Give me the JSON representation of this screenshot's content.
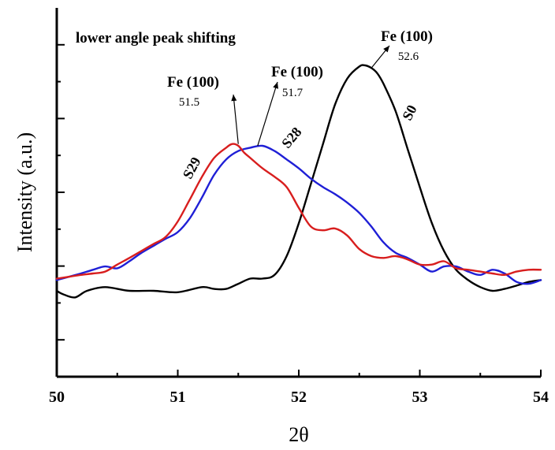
{
  "chart_data": {
    "type": "line",
    "xlabel": "2θ",
    "ylabel": "Intensity (a.u.)",
    "xlim": [
      50,
      54
    ],
    "ylim": [
      0,
      100
    ],
    "x_ticks": [
      "50",
      "51",
      "52",
      "53",
      "54"
    ],
    "y_ticks_labeled": false,
    "grid": false,
    "annotations": {
      "note": "lower angle peak shifting",
      "peaks": [
        {
          "label": "Fe (100)",
          "value": "51.5",
          "x": 51.5,
          "y": 63.1
        },
        {
          "label": "Fe (100)",
          "value": "51.7",
          "x": 51.66,
          "y": 62.6
        },
        {
          "label": "Fe (100)",
          "value": "52.6",
          "x": 52.6,
          "y": 83.7
        }
      ]
    },
    "series": [
      {
        "name": "S0",
        "color": "#000000",
        "x": [
          50,
          50.05,
          50.15,
          50.25,
          50.4,
          50.6,
          50.8,
          51.0,
          51.2,
          51.3,
          51.4,
          51.5,
          51.6,
          51.7,
          51.8,
          51.9,
          52.0,
          52.1,
          52.2,
          52.3,
          52.4,
          52.5,
          52.55,
          52.6,
          52.65,
          52.7,
          52.8,
          52.9,
          53.0,
          53.1,
          53.2,
          53.3,
          53.4,
          53.5,
          53.6,
          53.7,
          53.8,
          53.9,
          54.0
        ],
        "y": [
          23.3,
          22.4,
          21.5,
          23.3,
          24.3,
          23.3,
          23.3,
          22.9,
          24.3,
          23.8,
          23.8,
          25.2,
          26.6,
          26.6,
          27.6,
          32.7,
          41.6,
          52.3,
          63.1,
          73.8,
          80.8,
          84.1,
          84.4,
          83.7,
          82.2,
          79.4,
          72.0,
          61.7,
          51.4,
          41.6,
          34.1,
          29.0,
          26.2,
          24.3,
          23.3,
          23.8,
          24.7,
          25.7,
          26.2
        ]
      },
      {
        "name": "S28",
        "color": "#1f1fd6",
        "x": [
          50,
          50.1,
          50.2,
          50.3,
          50.4,
          50.5,
          50.6,
          50.7,
          50.8,
          50.9,
          51.0,
          51.1,
          51.2,
          51.3,
          51.4,
          51.5,
          51.6,
          51.7,
          51.8,
          51.9,
          52.0,
          52.1,
          52.2,
          52.3,
          52.4,
          52.5,
          52.6,
          52.7,
          52.8,
          52.9,
          53.0,
          53.1,
          53.2,
          53.3,
          53.4,
          53.5,
          53.6,
          53.7,
          53.8,
          53.9,
          54.0
        ],
        "y": [
          26.2,
          27.1,
          28.0,
          29.0,
          29.9,
          29.4,
          31.3,
          33.6,
          35.5,
          37.4,
          39.2,
          43.0,
          48.6,
          54.7,
          58.9,
          61.2,
          62.1,
          62.6,
          61.2,
          58.9,
          56.5,
          53.7,
          51.4,
          49.5,
          47.2,
          44.4,
          40.7,
          36.4,
          33.6,
          32.2,
          30.4,
          28.5,
          29.9,
          29.9,
          28.5,
          27.6,
          29.0,
          28.0,
          25.7,
          25.2,
          26.2
        ]
      },
      {
        "name": "S29",
        "color": "#d81e1e",
        "x": [
          50,
          50.1,
          50.2,
          50.3,
          50.4,
          50.5,
          50.6,
          50.7,
          50.8,
          50.9,
          51.0,
          51.1,
          51.2,
          51.3,
          51.4,
          51.45,
          51.5,
          51.55,
          51.6,
          51.7,
          51.8,
          51.9,
          52.0,
          52.1,
          52.2,
          52.3,
          52.4,
          52.5,
          52.6,
          52.7,
          52.8,
          52.9,
          53.0,
          53.1,
          53.2,
          53.3,
          53.4,
          53.5,
          53.6,
          53.7,
          53.8,
          53.9,
          54.0
        ],
        "y": [
          26.6,
          27.1,
          27.6,
          28.0,
          28.5,
          30.4,
          32.2,
          34.1,
          36.0,
          37.9,
          42.1,
          48.1,
          54.2,
          59.3,
          62.1,
          63.1,
          62.6,
          60.7,
          59.3,
          56.5,
          54.2,
          51.4,
          45.8,
          40.7,
          39.7,
          40.2,
          38.3,
          34.6,
          32.7,
          32.2,
          32.7,
          31.8,
          30.4,
          30.4,
          31.3,
          29.4,
          29.0,
          28.5,
          28.0,
          27.6,
          28.5,
          29.0,
          29.0
        ]
      }
    ]
  }
}
